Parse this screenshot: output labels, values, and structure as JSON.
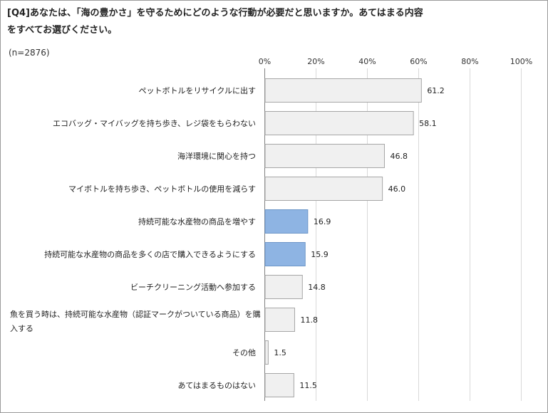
{
  "title_line1": "[Q4]あなたは、「海の豊かさ」を守るためにどのような行動が必要だと思いますか。あてはまる内容",
  "title_line2": "をすべてお選びください。",
  "sample": "(n=2876)",
  "colors": {
    "gray_bar": "#f0f0f0",
    "gray_border": "#a6a6a6",
    "blue_bar": "#8eb4e3",
    "blue_border": "#6d96c8",
    "grid": "#d9d9d9",
    "axis": "#808080"
  },
  "chart_data": {
    "type": "bar",
    "orientation": "horizontal",
    "title": "[Q4]あなたは、「海の豊かさ」を守るためにどのような行動が必要だと思いますか。あてはまる内容をすべてお選びください。",
    "xlim": [
      0,
      100
    ],
    "x_ticks": [
      "0%",
      "20%",
      "40%",
      "60%",
      "80%",
      "100%"
    ],
    "grid": true,
    "categories": [
      [
        "ペットボトルをリサイクルに出す"
      ],
      [
        "エコバッグ・マイバッグを持ち歩き、レジ袋をもらわない"
      ],
      [
        "海洋環境に関心を持つ"
      ],
      [
        "マイボトルを持ち歩き、ペットボトルの使用を減らす"
      ],
      [
        "持続可能な水産物の商品を増やす"
      ],
      [
        "持続可能な水産物の商品を多くの店で購入できるようにする"
      ],
      [
        "ビーチクリーニング活動へ参加する"
      ],
      [
        "魚を買う時は、持続可能な水産物（認証マークがついている商品）を購",
        "入する"
      ],
      [
        "その他"
      ],
      [
        "あてはまるものはない"
      ]
    ],
    "values": [
      61.2,
      58.1,
      46.8,
      46.0,
      16.9,
      15.9,
      14.8,
      11.8,
      1.5,
      11.5
    ],
    "value_labels": [
      "61.2",
      "58.1",
      "46.8",
      "46.0",
      "16.9",
      "15.9",
      "14.8",
      "11.8",
      "1.5",
      "11.5"
    ],
    "highlight": [
      false,
      false,
      false,
      false,
      true,
      true,
      false,
      false,
      false,
      false
    ]
  }
}
